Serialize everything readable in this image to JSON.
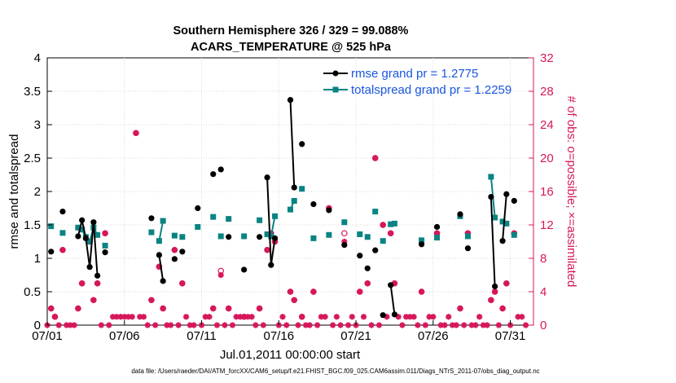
{
  "chart_data": {
    "type": "line",
    "title_line1": "Southern Hemisphere 326 / 329 = 99.088%",
    "title_line2": "ACARS_TEMPERATURE @ 525 hPa",
    "xlabel": "Jul.01,2011 00:00:00 start",
    "ylabel": "rmse and totalspread",
    "ylabel_right": "# of obs: o=possible; ×=assimilated",
    "footer": "data file: /Users/raeder/DAI/ATM_forcXX/CAM6_setup/f.e21.FHIST_BGC.f09_025.CAM6assim.011/Diags_NTrS_2011-07/obs_diag_output.nc",
    "xlim": [
      0,
      31.5
    ],
    "ylim": [
      0,
      4
    ],
    "ylim_right": [
      0,
      32
    ],
    "x_tick_values": [
      0,
      5,
      10,
      15,
      20,
      25,
      30
    ],
    "x_tick_labels": [
      "07/01",
      "07/06",
      "07/11",
      "07/16",
      "07/21",
      "07/26",
      "07/31"
    ],
    "y_tick_labels": [
      "0",
      "0.5",
      "1",
      "1.5",
      "2",
      "2.5",
      "3",
      "3.5",
      "4"
    ],
    "y_right_tick_labels": [
      "0",
      "4",
      "8",
      "12",
      "16",
      "20",
      "24",
      "28",
      "32"
    ],
    "colors": {
      "rmse": "#000000",
      "totalspread": "#0a8383",
      "obs": "#d6175c",
      "legend_text": "#1a56e0"
    },
    "series": [
      {
        "name": "rmse grand pr = 1.2775",
        "key": "rmse",
        "points": [
          [
            0.25,
            1.1
          ],
          [
            1.0,
            1.7
          ],
          [
            2.0,
            1.33
          ],
          [
            2.25,
            1.57
          ],
          [
            2.5,
            1.3
          ],
          [
            2.75,
            0.87
          ],
          [
            3.0,
            1.54
          ],
          [
            3.25,
            0.74
          ],
          [
            3.75,
            1.09
          ],
          [
            6.75,
            1.6
          ],
          [
            7.25,
            1.05
          ],
          [
            7.5,
            0.66
          ],
          [
            8.25,
            0.99
          ],
          [
            8.75,
            1.1
          ],
          [
            9.75,
            1.75
          ],
          [
            10.75,
            2.26
          ],
          [
            11.25,
            2.33
          ],
          [
            11.75,
            1.32
          ],
          [
            12.75,
            0.83
          ],
          [
            13.75,
            1.32
          ],
          [
            14.25,
            2.21
          ],
          [
            14.5,
            0.9
          ],
          [
            14.75,
            1.3
          ],
          [
            15.75,
            3.37
          ],
          [
            16.0,
            2.06
          ],
          [
            16.5,
            2.71
          ],
          [
            17.25,
            1.81
          ],
          [
            18.25,
            1.72
          ],
          [
            19.25,
            1.2
          ],
          [
            20.25,
            1.04
          ],
          [
            20.75,
            0.85
          ],
          [
            21.25,
            1.12
          ],
          [
            21.75,
            0.15
          ],
          [
            22.25,
            0.6
          ],
          [
            22.5,
            0.16
          ],
          [
            24.25,
            1.21
          ],
          [
            25.25,
            1.47
          ],
          [
            26.75,
            1.66
          ],
          [
            27.25,
            1.15
          ],
          [
            28.75,
            1.92
          ],
          [
            29.0,
            0.58
          ],
          [
            29.5,
            1.26
          ],
          [
            29.75,
            1.96
          ],
          [
            30.25,
            1.86
          ]
        ]
      },
      {
        "name": "totalspread grand pr = 1.2259",
        "key": "totalspread",
        "points": [
          [
            0.25,
            1.48
          ],
          [
            1.0,
            1.38
          ],
          [
            2.0,
            1.46
          ],
          [
            2.25,
            1.43
          ],
          [
            2.5,
            1.32
          ],
          [
            2.75,
            1.25
          ],
          [
            3.0,
            1.46
          ],
          [
            3.25,
            1.35
          ],
          [
            3.75,
            1.19
          ],
          [
            6.75,
            1.39
          ],
          [
            7.25,
            1.26
          ],
          [
            7.5,
            1.56
          ],
          [
            8.25,
            1.34
          ],
          [
            8.75,
            1.32
          ],
          [
            9.75,
            1.47
          ],
          [
            10.75,
            1.62
          ],
          [
            11.25,
            1.33
          ],
          [
            11.75,
            1.59
          ],
          [
            12.75,
            1.33
          ],
          [
            13.75,
            1.57
          ],
          [
            14.25,
            1.36
          ],
          [
            14.5,
            1.33
          ],
          [
            14.75,
            1.63
          ],
          [
            15.75,
            1.73
          ],
          [
            16.0,
            1.86
          ],
          [
            16.5,
            2.04
          ],
          [
            17.25,
            1.3
          ],
          [
            18.25,
            1.35
          ],
          [
            19.25,
            1.54
          ],
          [
            20.25,
            1.36
          ],
          [
            20.75,
            1.32
          ],
          [
            21.25,
            1.7
          ],
          [
            21.75,
            1.26
          ],
          [
            22.25,
            1.51
          ],
          [
            22.5,
            1.52
          ],
          [
            24.25,
            1.27
          ],
          [
            25.25,
            1.31
          ],
          [
            26.75,
            1.63
          ],
          [
            27.25,
            1.33
          ],
          [
            28.75,
            2.22
          ],
          [
            29.0,
            1.61
          ],
          [
            29.5,
            1.55
          ],
          [
            29.75,
            1.52
          ],
          [
            30.25,
            1.35
          ]
        ]
      }
    ],
    "obs_possible": [
      [
        0.25,
        2
      ],
      [
        0.5,
        1
      ],
      [
        1.0,
        9
      ],
      [
        2.0,
        2
      ],
      [
        2.25,
        5
      ],
      [
        2.75,
        10
      ],
      [
        3.0,
        3
      ],
      [
        3.25,
        5
      ],
      [
        3.75,
        11
      ],
      [
        5.75,
        23
      ],
      [
        6.75,
        3
      ],
      [
        7.25,
        7
      ],
      [
        7.5,
        2
      ],
      [
        8.25,
        9
      ],
      [
        8.75,
        5
      ],
      [
        10.75,
        2
      ],
      [
        11.25,
        6.5
      ],
      [
        11.75,
        2
      ],
      [
        12.75,
        1
      ],
      [
        13.75,
        2
      ],
      [
        14.25,
        9
      ],
      [
        14.5,
        11
      ],
      [
        14.75,
        10
      ],
      [
        15.75,
        4
      ],
      [
        16.0,
        3
      ],
      [
        16.5,
        1
      ],
      [
        17.25,
        4
      ],
      [
        18.25,
        14
      ],
      [
        19.25,
        11
      ],
      [
        20.25,
        4
      ],
      [
        20.75,
        5
      ],
      [
        21.25,
        20
      ],
      [
        21.75,
        12
      ],
      [
        22.25,
        11
      ],
      [
        22.5,
        5
      ],
      [
        24.25,
        4
      ],
      [
        25.25,
        11
      ],
      [
        26.75,
        2
      ],
      [
        27.25,
        11
      ],
      [
        28.75,
        3
      ],
      [
        29.0,
        4
      ],
      [
        29.5,
        2
      ],
      [
        29.75,
        5
      ],
      [
        30.25,
        11
      ]
    ],
    "obs_assimilated": [
      [
        0.25,
        2
      ],
      [
        0.5,
        1
      ],
      [
        1.0,
        9
      ],
      [
        2.0,
        2
      ],
      [
        2.25,
        5
      ],
      [
        2.75,
        10
      ],
      [
        3.0,
        3
      ],
      [
        3.25,
        5
      ],
      [
        3.75,
        11
      ],
      [
        5.75,
        23
      ],
      [
        6.75,
        3
      ],
      [
        7.25,
        7
      ],
      [
        7.5,
        2
      ],
      [
        8.25,
        9
      ],
      [
        8.75,
        5
      ],
      [
        10.75,
        2
      ],
      [
        11.25,
        6
      ],
      [
        11.75,
        2
      ],
      [
        12.75,
        1
      ],
      [
        13.75,
        2
      ],
      [
        14.25,
        9
      ],
      [
        14.5,
        11
      ],
      [
        14.75,
        10
      ],
      [
        15.75,
        4
      ],
      [
        16.0,
        3
      ],
      [
        16.5,
        1
      ],
      [
        17.25,
        4
      ],
      [
        18.25,
        14
      ],
      [
        19.25,
        10
      ],
      [
        20.25,
        4
      ],
      [
        20.75,
        5
      ],
      [
        21.25,
        20
      ],
      [
        21.75,
        12
      ],
      [
        22.25,
        11
      ],
      [
        22.5,
        5
      ],
      [
        24.25,
        4
      ],
      [
        25.25,
        11
      ],
      [
        26.75,
        2
      ],
      [
        27.25,
        11
      ],
      [
        28.75,
        3
      ],
      [
        29.0,
        4
      ],
      [
        29.5,
        2
      ],
      [
        29.75,
        5
      ],
      [
        30.25,
        11
      ],
      [
        0.0,
        0
      ],
      [
        0.75,
        0
      ],
      [
        1.25,
        0
      ],
      [
        1.5,
        0
      ],
      [
        1.75,
        0
      ],
      [
        3.5,
        0
      ],
      [
        4.0,
        0
      ],
      [
        4.25,
        1
      ],
      [
        4.5,
        1
      ],
      [
        4.75,
        1
      ],
      [
        5.0,
        1
      ],
      [
        5.25,
        1
      ],
      [
        5.5,
        1
      ],
      [
        6.0,
        1
      ],
      [
        6.25,
        1
      ],
      [
        6.5,
        0
      ],
      [
        7.0,
        0
      ],
      [
        7.75,
        0
      ],
      [
        8.0,
        0
      ],
      [
        8.5,
        0
      ],
      [
        9.0,
        1
      ],
      [
        9.25,
        0
      ],
      [
        9.5,
        0
      ],
      [
        10.0,
        0
      ],
      [
        10.25,
        1
      ],
      [
        10.5,
        1
      ],
      [
        11.0,
        0
      ],
      [
        11.5,
        0
      ],
      [
        12.0,
        0
      ],
      [
        12.25,
        1
      ],
      [
        12.5,
        1
      ],
      [
        13.0,
        1
      ],
      [
        13.25,
        1
      ],
      [
        13.5,
        0
      ],
      [
        14.0,
        0
      ],
      [
        15.0,
        0
      ],
      [
        15.25,
        1
      ],
      [
        15.5,
        0
      ],
      [
        16.25,
        0
      ],
      [
        16.75,
        0
      ],
      [
        17.0,
        0
      ],
      [
        17.5,
        0
      ],
      [
        17.75,
        1
      ],
      [
        18.0,
        1
      ],
      [
        18.5,
        0
      ],
      [
        18.75,
        1
      ],
      [
        19.0,
        0
      ],
      [
        19.5,
        0
      ],
      [
        19.75,
        1
      ],
      [
        20.0,
        0
      ],
      [
        20.5,
        1
      ],
      [
        21.0,
        0
      ],
      [
        21.5,
        0
      ],
      [
        22.0,
        1
      ],
      [
        22.75,
        1
      ],
      [
        23.0,
        0
      ],
      [
        23.25,
        1
      ],
      [
        23.5,
        1
      ],
      [
        23.75,
        1
      ],
      [
        24.0,
        0
      ],
      [
        24.5,
        0
      ],
      [
        24.75,
        1
      ],
      [
        25.0,
        1
      ],
      [
        25.5,
        0
      ],
      [
        25.75,
        0
      ],
      [
        26.0,
        1
      ],
      [
        26.25,
        0
      ],
      [
        26.5,
        0
      ],
      [
        27.0,
        0
      ],
      [
        27.5,
        0
      ],
      [
        27.75,
        0
      ],
      [
        28.0,
        1
      ],
      [
        28.25,
        0
      ],
      [
        28.5,
        0
      ],
      [
        29.25,
        0
      ],
      [
        30.0,
        0
      ],
      [
        30.5,
        1
      ],
      [
        30.75,
        1
      ],
      [
        31.0,
        0
      ]
    ]
  }
}
